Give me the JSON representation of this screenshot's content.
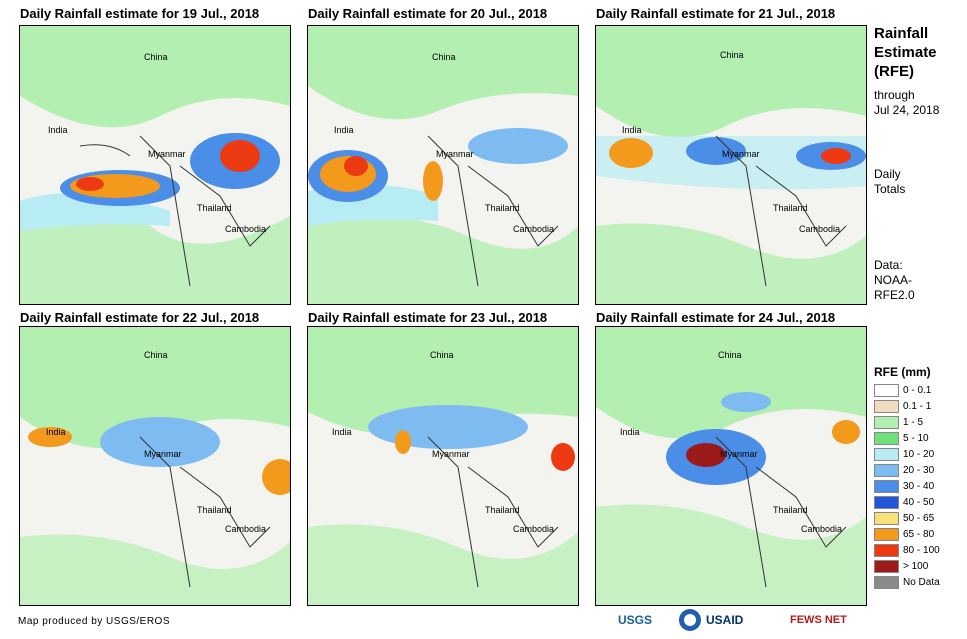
{
  "panels": [
    {
      "title": "Daily Rainfall estimate for 19 Jul., 2018",
      "labels": {
        "china": "China",
        "india": "India",
        "myanmar": "Myanmar",
        "thailand": "Thailand",
        "cambodia": "Cambodia"
      }
    },
    {
      "title": "Daily Rainfall estimate for 20 Jul., 2018",
      "labels": {
        "china": "China",
        "india": "India",
        "myanmar": "Myanmar",
        "thailand": "Thailand",
        "cambodia": "Cambodia"
      }
    },
    {
      "title": "Daily Rainfall estimate for 21 Jul., 2018",
      "labels": {
        "china": "China",
        "india": "India",
        "myanmar": "Myanmar",
        "thailand": "Thailand",
        "cambodia": "Cambodia"
      }
    },
    {
      "title": "Daily Rainfall estimate for 22 Jul., 2018",
      "labels": {
        "china": "China",
        "india": "India",
        "myanmar": "Myanmar",
        "thailand": "Thailand",
        "cambodia": "Cambodia"
      }
    },
    {
      "title": "Daily Rainfall estimate for 23 Jul., 2018",
      "labels": {
        "china": "China",
        "india": "India",
        "myanmar": "Myanmar",
        "thailand": "Thailand",
        "cambodia": "Cambodia"
      }
    },
    {
      "title": "Daily Rainfall estimate for 24 Jul., 2018",
      "labels": {
        "china": "China",
        "india": "India",
        "myanmar": "Myanmar",
        "thailand": "Thailand",
        "cambodia": "Cambodia"
      }
    }
  ],
  "sidebar": {
    "title_line1": "Rainfall",
    "title_line2": "Estimate",
    "title_line3": "(RFE)",
    "through_line1": "through",
    "through_line2": "Jul 24, 2018",
    "daily_line1": "Daily",
    "daily_line2": "Totals",
    "data_line1": "Data:",
    "data_line2": "NOAA-",
    "data_line3": "RFE2.0"
  },
  "legend": {
    "title": "RFE (mm)",
    "items": [
      {
        "label": "0 - 0.1",
        "color": "#ffffff"
      },
      {
        "label": "0.1 - 1",
        "color": "#f0dcbd"
      },
      {
        "label": "1 - 5",
        "color": "#b3efb0"
      },
      {
        "label": "5 - 10",
        "color": "#6fe07a"
      },
      {
        "label": "10 - 20",
        "color": "#b8ecf5"
      },
      {
        "label": "20 - 30",
        "color": "#7dbbf0"
      },
      {
        "label": "30 - 40",
        "color": "#4a8ee8"
      },
      {
        "label": "40 - 50",
        "color": "#2156d8"
      },
      {
        "label": "50 - 65",
        "color": "#f7e27a"
      },
      {
        "label": "65 - 80",
        "color": "#f39a1c"
      },
      {
        "label": "80 - 100",
        "color": "#ee3a12"
      },
      {
        "label": "> 100",
        "color": "#9c1a1a"
      },
      {
        "label": "No Data",
        "color": "#8a8a8a"
      }
    ]
  },
  "credit": "Map produced by USGS/EROS",
  "logos": {
    "usgs": "USGS",
    "usaid": "USAID",
    "fewsnet": "FEWS NET"
  }
}
